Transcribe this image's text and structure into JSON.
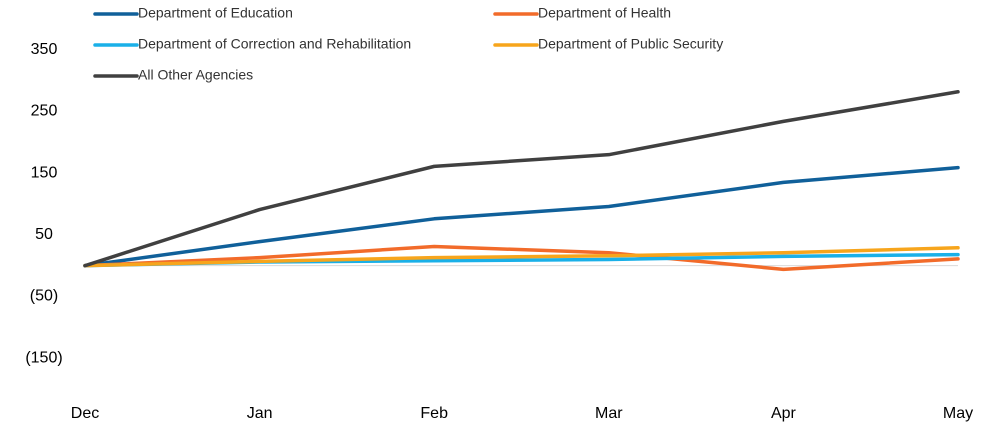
{
  "chart_data": {
    "type": "line",
    "categories": [
      "Dec",
      "Jan",
      "Feb",
      "Mar",
      "Apr",
      "May"
    ],
    "series": [
      {
        "name": "Department of Education",
        "color": "#10609a",
        "values": [
          0,
          39,
          76,
          96,
          135,
          159
        ]
      },
      {
        "name": "Department of Health",
        "color": "#f26b2a",
        "values": [
          0,
          13,
          31,
          21,
          -6,
          11
        ]
      },
      {
        "name": "Department of Correction and Rehabilitation",
        "color": "#1ab0e8",
        "values": [
          0,
          6,
          8,
          10,
          15,
          18
        ]
      },
      {
        "name": "Department of Public Security",
        "color": "#f7a51c",
        "values": [
          0,
          7,
          13,
          16,
          21,
          29
        ]
      },
      {
        "name": "All Other Agencies",
        "color": "#404040",
        "values": [
          0,
          91,
          161,
          180,
          234,
          282
        ]
      }
    ],
    "ylim": [
      -200,
      400
    ],
    "yticks": [
      350,
      250,
      150,
      50,
      {
        "value": -50,
        "label": "(50)"
      },
      {
        "value": -150,
        "label": "(150)"
      }
    ],
    "grid": false
  }
}
